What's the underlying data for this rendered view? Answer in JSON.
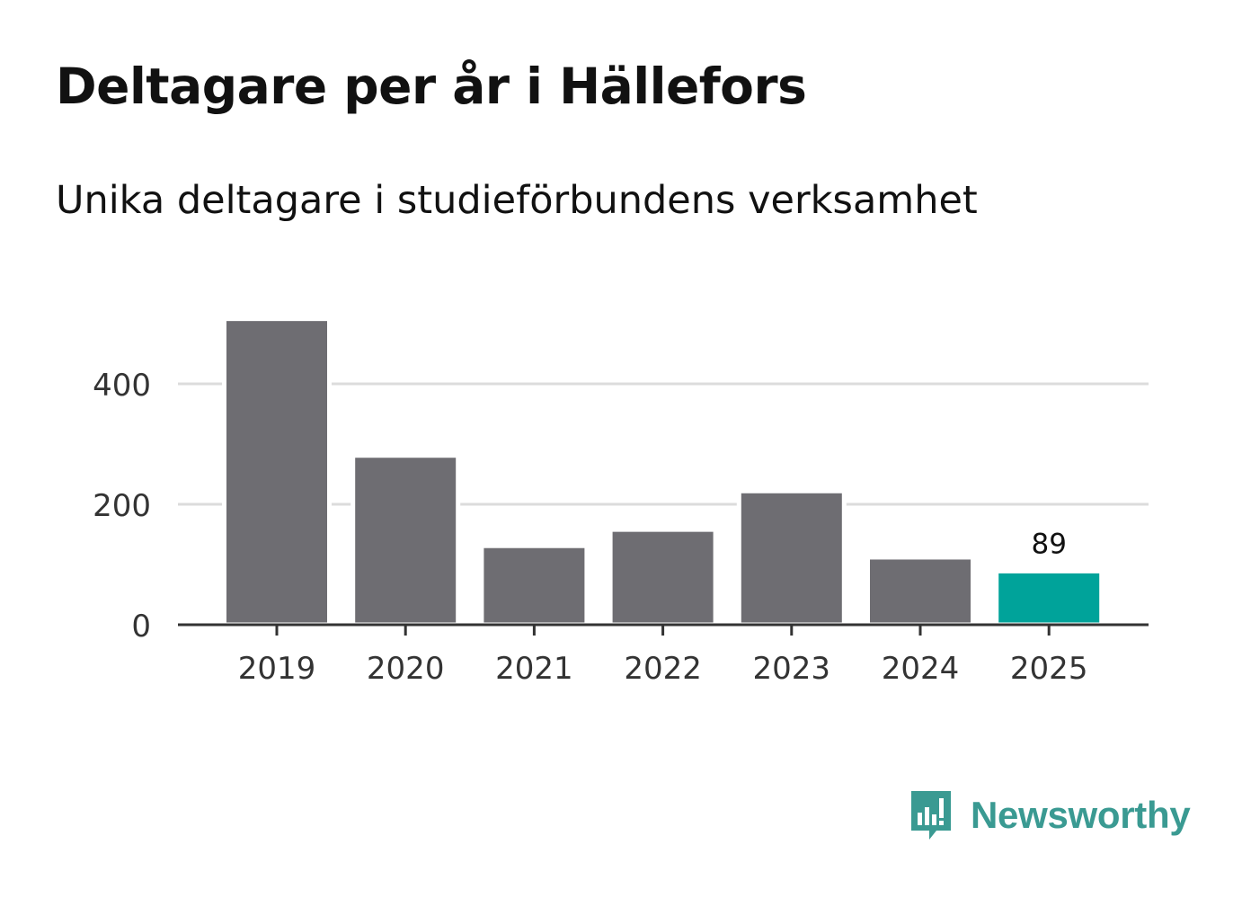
{
  "header": {
    "title": "Deltagare per år i Hällefors",
    "subtitle": "Unika deltagare i studieförbundens verksamhet"
  },
  "brand": {
    "name": "Newsworthy",
    "color": "#3a9a92",
    "icon": "newsworthy-chart-bubble-icon"
  },
  "chart_data": {
    "type": "bar",
    "title": "Deltagare per år i Hällefors",
    "subtitle": "Unika deltagare i studieförbundens verksamhet",
    "xlabel": "",
    "ylabel": "",
    "categories": [
      "2019",
      "2020",
      "2021",
      "2022",
      "2023",
      "2024",
      "2025"
    ],
    "values": [
      508,
      281,
      131,
      158,
      222,
      112,
      89
    ],
    "ylim": [
      0,
      510
    ],
    "yticks": [
      0,
      200,
      400
    ],
    "grid": true,
    "highlight_index": 6,
    "data_labels": [
      {
        "index": 6,
        "text": "89"
      }
    ],
    "colors": {
      "bar": "#6e6d72",
      "highlight": "#00a39a",
      "grid": "#dcdcdc",
      "axis": "#333333",
      "tick_text": "#333333"
    }
  }
}
